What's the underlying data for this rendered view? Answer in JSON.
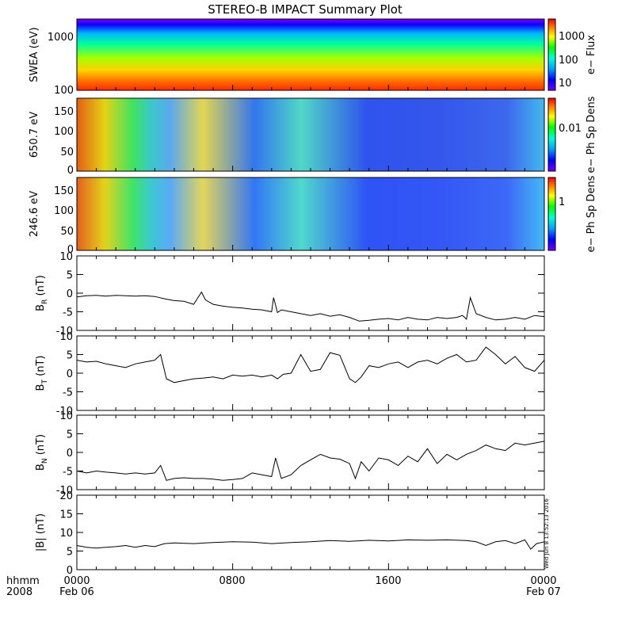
{
  "chart_data": {
    "type": "line",
    "title": "STEREO-B IMPACT Summary Plot",
    "footer": {
      "hhmm": "hhmm",
      "year": "2008",
      "start_time": "0000",
      "start_date": "Feb 06",
      "mid1": "0800",
      "mid2": "1600",
      "end_time": "0000",
      "end_date": "Feb 07"
    },
    "timestamp": "Wed Jun  8 13:52:13 2016",
    "x_range_hours": [
      0,
      24
    ],
    "spectrograms": [
      {
        "name": "swea",
        "ylabel": "SWEA (eV)",
        "scale": "log",
        "yticks": [
          "1000",
          "100"
        ],
        "colorbar_label": "e− Flux",
        "colorbar_ticks": [
          "1000",
          "100",
          "10"
        ]
      },
      {
        "name": "pad650",
        "ylabel": "650.7 eV",
        "scale": "linear",
        "ylim": [
          0,
          180
        ],
        "yticks": [
          "150",
          "100",
          "50",
          "0"
        ],
        "colorbar_label": "e− Ph Sp Dens",
        "colorbar_ticks": [
          "0.01"
        ]
      },
      {
        "name": "pad246",
        "ylabel": "246.6 eV",
        "scale": "linear",
        "ylim": [
          0,
          180
        ],
        "yticks": [
          "150",
          "100",
          "50",
          "0"
        ],
        "colorbar_label": "e− Ph Sp Dens",
        "colorbar_ticks": [
          "1"
        ]
      }
    ],
    "series": [
      {
        "name": "BR",
        "ylabel_main": "B",
        "ylabel_sub": "R",
        "ylabel_unit": " (nT)",
        "ylim": [
          -10,
          10
        ],
        "yticks": [
          "10",
          "5",
          "0",
          "-5",
          "-10"
        ],
        "t": [
          0,
          0.5,
          1,
          1.5,
          2,
          2.5,
          3,
          3.5,
          4,
          4.5,
          5,
          5.5,
          6,
          6.4,
          6.6,
          7,
          7.5,
          8,
          8.5,
          9,
          9.5,
          10,
          10.1,
          10.3,
          10.5,
          11,
          11.5,
          12,
          12.5,
          13,
          13.5,
          14,
          14.5,
          15,
          15.5,
          16,
          16.5,
          17,
          17.5,
          18,
          18.5,
          19,
          19.5,
          19.8,
          20,
          20.2,
          20.5,
          21,
          21.5,
          22,
          22.5,
          23,
          23.5,
          24
        ],
        "values": [
          -1,
          -0.7,
          -0.6,
          -0.8,
          -0.6,
          -0.7,
          -0.8,
          -0.7,
          -0.9,
          -1.5,
          -2,
          -2.2,
          -3,
          0.3,
          -1.8,
          -3,
          -3.5,
          -3.8,
          -4,
          -4.3,
          -4.5,
          -5,
          -1.2,
          -5.2,
          -4.5,
          -5,
          -5.5,
          -6,
          -5.5,
          -6.2,
          -5.8,
          -6.5,
          -7.5,
          -7.3,
          -7,
          -6.8,
          -7.2,
          -6.5,
          -7,
          -7.2,
          -6.5,
          -6.8,
          -6.5,
          -6,
          -7,
          -1.2,
          -5.5,
          -6.5,
          -7.2,
          -7,
          -6.5,
          -7,
          -6,
          -6.3
        ]
      },
      {
        "name": "BT",
        "ylabel_main": "B",
        "ylabel_sub": "T",
        "ylabel_unit": " (nT)",
        "ylim": [
          -10,
          10
        ],
        "yticks": [
          "10",
          "5",
          "0",
          "-5",
          "-10"
        ],
        "t": [
          0,
          0.5,
          1,
          1.5,
          2,
          2.5,
          3,
          3.5,
          4,
          4.3,
          4.6,
          5,
          5.5,
          6,
          6.5,
          7,
          7.5,
          8,
          8.5,
          9,
          9.5,
          10,
          10.3,
          10.6,
          11,
          11.5,
          12,
          12.5,
          13,
          13.5,
          14,
          14.3,
          14.6,
          15,
          15.5,
          16,
          16.5,
          17,
          17.5,
          18,
          18.5,
          19,
          19.5,
          20,
          20.5,
          21,
          21.5,
          22,
          22.5,
          23,
          23.5,
          24
        ],
        "values": [
          3.5,
          3,
          3.2,
          2.5,
          2,
          1.5,
          2.5,
          3,
          3.5,
          5,
          -1.5,
          -2.5,
          -2,
          -1.5,
          -1.3,
          -1,
          -1.5,
          -0.5,
          -0.8,
          -0.5,
          -1,
          -0.5,
          -1.5,
          -0.3,
          0,
          5,
          0.5,
          1,
          5.5,
          4.8,
          -1.5,
          -2.5,
          -1,
          2,
          1.5,
          2.5,
          3,
          1.5,
          3,
          3.5,
          2.5,
          4,
          5,
          3,
          3.5,
          7,
          5,
          2.5,
          4.5,
          1.5,
          0.5,
          3.5
        ]
      },
      {
        "name": "BN",
        "ylabel_main": "B",
        "ylabel_sub": "N",
        "ylabel_unit": " (nT)",
        "ylim": [
          -10,
          10
        ],
        "yticks": [
          "10",
          "5",
          "0",
          "-5",
          "-10"
        ],
        "t": [
          0,
          0.5,
          1,
          1.5,
          2,
          2.5,
          3,
          3.5,
          4,
          4.3,
          4.6,
          5,
          5.5,
          6,
          6.5,
          7,
          7.5,
          8,
          8.5,
          9,
          9.5,
          10,
          10.2,
          10.5,
          11,
          11.5,
          12,
          12.5,
          13,
          13.5,
          14,
          14.3,
          14.6,
          15,
          15.5,
          16,
          16.5,
          17,
          17.5,
          18,
          18.5,
          19,
          19.5,
          20,
          20.5,
          21,
          21.5,
          22,
          22.5,
          23,
          23.5,
          24
        ],
        "values": [
          -5,
          -5.5,
          -5,
          -5.3,
          -5.5,
          -5.8,
          -5.5,
          -5.8,
          -5.5,
          -3.5,
          -7.5,
          -7,
          -6.8,
          -7,
          -7,
          -7.2,
          -7.5,
          -7.3,
          -7,
          -5.5,
          -6,
          -6.5,
          -1.5,
          -7,
          -6,
          -3.5,
          -2,
          -0.5,
          -1.5,
          -1.8,
          -3,
          -7,
          -2.5,
          -5,
          -1.5,
          -2,
          -3.5,
          -1,
          -2.5,
          1,
          -3,
          -0.5,
          -2,
          -0.5,
          0.5,
          2,
          1,
          0.5,
          2.5,
          2,
          2.5,
          3
        ]
      },
      {
        "name": "B",
        "ylabel_main": "|B| (nT)",
        "ylabel_sub": "",
        "ylabel_unit": "",
        "ylim": [
          0,
          20
        ],
        "yticks": [
          "20",
          "15",
          "10",
          "5",
          "0"
        ],
        "t": [
          0,
          0.5,
          1,
          1.5,
          2,
          2.5,
          3,
          3.5,
          4,
          4.5,
          5,
          6,
          7,
          8,
          9,
          10,
          11,
          12,
          13,
          14,
          15,
          16,
          17,
          18,
          19,
          20,
          20.5,
          21,
          21.5,
          22,
          22.5,
          23,
          23.3,
          23.6,
          24
        ],
        "values": [
          6.5,
          6,
          5.8,
          6,
          6.2,
          6.5,
          6,
          6.5,
          6.2,
          7,
          7.2,
          7,
          7.3,
          7.5,
          7.4,
          7,
          7.3,
          7.5,
          7.8,
          7.6,
          7.9,
          7.7,
          8,
          7.9,
          8,
          7.8,
          7.5,
          6.5,
          7.5,
          7.8,
          7,
          8,
          5.5,
          7,
          7.5
        ]
      }
    ]
  }
}
